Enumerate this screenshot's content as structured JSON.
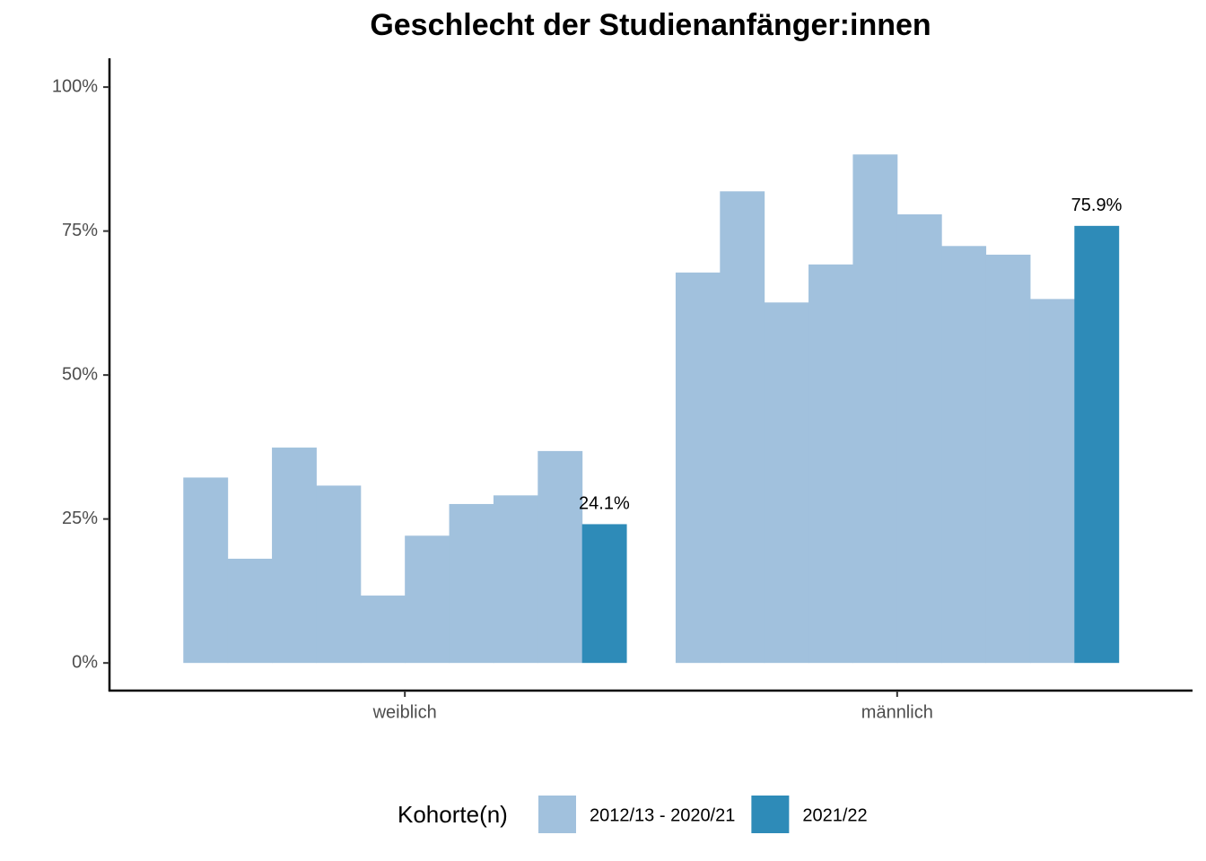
{
  "chart_data": {
    "type": "bar",
    "title": "Geschlecht der Studienanfänger:innen",
    "categories": [
      "weiblich",
      "männlich"
    ],
    "series": [
      {
        "name": "2012/13 - 2020/21",
        "color": "#a1c1dd",
        "values": [
          [
            32.2,
            18.1,
            37.4,
            30.8,
            11.7,
            22.1,
            27.6,
            29.1,
            36.8
          ],
          [
            67.8,
            81.9,
            62.6,
            69.2,
            88.3,
            77.9,
            72.4,
            70.9,
            63.2
          ]
        ]
      },
      {
        "name": "2021/22",
        "color": "#2e8bb8",
        "values": [
          24.1,
          75.9
        ],
        "value_labels": [
          "24.1%",
          "75.9%"
        ]
      }
    ],
    "legend_title": "Kohorte(n)",
    "ylim": [
      -4.8,
      105
    ],
    "yticks": [
      {
        "value": 0,
        "label": "0%"
      },
      {
        "value": 25,
        "label": "25%"
      },
      {
        "value": 50,
        "label": "50%"
      },
      {
        "value": 75,
        "label": "75%"
      },
      {
        "value": 100,
        "label": "100%"
      }
    ]
  }
}
